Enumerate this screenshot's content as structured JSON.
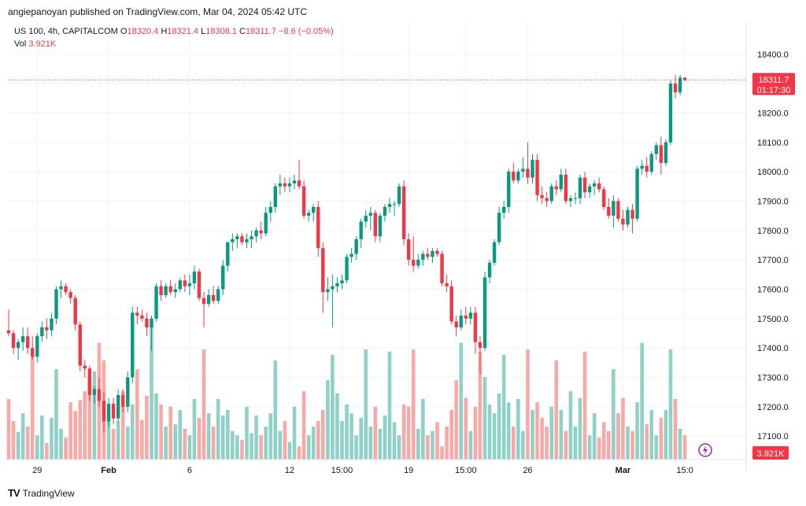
{
  "header": {
    "published": "angiepanoyan published on TradingView.com, Mar 04, 2024 05:42 UTC"
  },
  "legend": {
    "symbol": "US 100, 4h, CAPITALCOM",
    "o_label": "O",
    "o_value": "18320.4",
    "h_label": "H",
    "h_value": "18321.4",
    "l_label": "L",
    "l_value": "18308.1",
    "c_label": "C",
    "c_value": "18311.7",
    "change": "−8.6 (−0.05%)",
    "vol_label": "Vol",
    "vol_value": "3.921K"
  },
  "price_tag": {
    "price": "18311.7",
    "countdown": "01:17:30"
  },
  "vol_tag": "3.921K",
  "footer": {
    "logo": "TV",
    "brand": "TradingView"
  },
  "colors": {
    "up": "#089981",
    "down": "#f23645",
    "vol_up": "#8fd1c6",
    "vol_down": "#f7a9a7",
    "grid": "#f0f3fa"
  },
  "chart_data": {
    "type": "candlestick",
    "title": "US 100, 4h, CAPITALCOM",
    "y_ticks": [
      17100,
      17200,
      17300,
      17400,
      17500,
      17600,
      17700,
      17800,
      17900,
      18000,
      18100,
      18200,
      18400
    ],
    "ylim": [
      17020,
      18450
    ],
    "x_ticks": [
      {
        "label": "29",
        "index": 6
      },
      {
        "label": "Feb",
        "index": 21
      },
      {
        "label": "6",
        "index": 38
      },
      {
        "label": "12",
        "index": 59
      },
      {
        "label": "15:00",
        "index": 70
      },
      {
        "label": "19",
        "index": 84
      },
      {
        "label": "15:00",
        "index": 96
      },
      {
        "label": "26",
        "index": 109
      },
      {
        "label": "Mar",
        "index": 129
      },
      {
        "label": "15:0",
        "index": 142
      }
    ],
    "last_price": 18311.7,
    "candles": [
      {
        "o": 17460,
        "h": 17530,
        "l": 17440,
        "c": 17450,
        "v": 0.55
      },
      {
        "o": 17450,
        "h": 17460,
        "l": 17380,
        "c": 17400,
        "v": 0.35
      },
      {
        "o": 17400,
        "h": 17430,
        "l": 17360,
        "c": 17420,
        "v": 0.25
      },
      {
        "o": 17420,
        "h": 17470,
        "l": 17390,
        "c": 17440,
        "v": 0.42
      },
      {
        "o": 17440,
        "h": 17470,
        "l": 17380,
        "c": 17400,
        "v": 0.3
      },
      {
        "o": 17400,
        "h": 17440,
        "l": 17360,
        "c": 17370,
        "v": 0.98
      },
      {
        "o": 17370,
        "h": 17450,
        "l": 17350,
        "c": 17440,
        "v": 0.22
      },
      {
        "o": 17440,
        "h": 17490,
        "l": 17420,
        "c": 17470,
        "v": 0.4
      },
      {
        "o": 17470,
        "h": 17500,
        "l": 17430,
        "c": 17460,
        "v": 0.15
      },
      {
        "o": 17460,
        "h": 17520,
        "l": 17440,
        "c": 17500,
        "v": 0.38
      },
      {
        "o": 17500,
        "h": 17610,
        "l": 17480,
        "c": 17600,
        "v": 0.82
      },
      {
        "o": 17600,
        "h": 17630,
        "l": 17570,
        "c": 17610,
        "v": 0.28
      },
      {
        "o": 17610,
        "h": 17620,
        "l": 17580,
        "c": 17590,
        "v": 0.2
      },
      {
        "o": 17590,
        "h": 17600,
        "l": 17550,
        "c": 17570,
        "v": 0.52
      },
      {
        "o": 17570,
        "h": 17580,
        "l": 17460,
        "c": 17480,
        "v": 0.44
      },
      {
        "o": 17480,
        "h": 17490,
        "l": 17320,
        "c": 17340,
        "v": 0.54
      },
      {
        "o": 17340,
        "h": 17360,
        "l": 17300,
        "c": 17330,
        "v": 0.62
      },
      {
        "o": 17330,
        "h": 17340,
        "l": 17220,
        "c": 17240,
        "v": 0.75
      },
      {
        "o": 17240,
        "h": 17270,
        "l": 17210,
        "c": 17260,
        "v": 0.8
      },
      {
        "o": 17260,
        "h": 17300,
        "l": 17200,
        "c": 17220,
        "v": 1.06
      },
      {
        "o": 17220,
        "h": 17250,
        "l": 17110,
        "c": 17150,
        "v": 0.9
      },
      {
        "o": 17150,
        "h": 17230,
        "l": 17130,
        "c": 17210,
        "v": 0.42
      },
      {
        "o": 17210,
        "h": 17230,
        "l": 17140,
        "c": 17160,
        "v": 0.28
      },
      {
        "o": 17160,
        "h": 17260,
        "l": 17150,
        "c": 17240,
        "v": 0.35
      },
      {
        "o": 17240,
        "h": 17260,
        "l": 17180,
        "c": 17200,
        "v": 0.62
      },
      {
        "o": 17200,
        "h": 17320,
        "l": 17180,
        "c": 17300,
        "v": 0.3
      },
      {
        "o": 17300,
        "h": 17540,
        "l": 17280,
        "c": 17520,
        "v": 0.5
      },
      {
        "o": 17520,
        "h": 17540,
        "l": 17480,
        "c": 17510,
        "v": 0.82
      },
      {
        "o": 17510,
        "h": 17530,
        "l": 17490,
        "c": 17500,
        "v": 0.36
      },
      {
        "o": 17500,
        "h": 17520,
        "l": 17440,
        "c": 17470,
        "v": 0.58
      },
      {
        "o": 17470,
        "h": 17510,
        "l": 17390,
        "c": 17500,
        "v": 1.26
      },
      {
        "o": 17500,
        "h": 17620,
        "l": 17490,
        "c": 17610,
        "v": 0.6
      },
      {
        "o": 17610,
        "h": 17630,
        "l": 17560,
        "c": 17580,
        "v": 0.5
      },
      {
        "o": 17580,
        "h": 17620,
        "l": 17570,
        "c": 17610,
        "v": 0.3
      },
      {
        "o": 17610,
        "h": 17630,
        "l": 17580,
        "c": 17590,
        "v": 0.48
      },
      {
        "o": 17590,
        "h": 17620,
        "l": 17570,
        "c": 17600,
        "v": 0.32
      },
      {
        "o": 17600,
        "h": 17640,
        "l": 17590,
        "c": 17630,
        "v": 0.45
      },
      {
        "o": 17630,
        "h": 17650,
        "l": 17590,
        "c": 17610,
        "v": 0.28
      },
      {
        "o": 17610,
        "h": 17650,
        "l": 17580,
        "c": 17620,
        "v": 0.22
      },
      {
        "o": 17620,
        "h": 17680,
        "l": 17600,
        "c": 17660,
        "v": 0.55
      },
      {
        "o": 17660,
        "h": 17670,
        "l": 17560,
        "c": 17570,
        "v": 0.38
      },
      {
        "o": 17570,
        "h": 17590,
        "l": 17470,
        "c": 17550,
        "v": 1.0
      },
      {
        "o": 17550,
        "h": 17600,
        "l": 17540,
        "c": 17580,
        "v": 0.42
      },
      {
        "o": 17580,
        "h": 17610,
        "l": 17550,
        "c": 17560,
        "v": 0.3
      },
      {
        "o": 17560,
        "h": 17610,
        "l": 17550,
        "c": 17600,
        "v": 0.55
      },
      {
        "o": 17600,
        "h": 17700,
        "l": 17580,
        "c": 17680,
        "v": 0.4
      },
      {
        "o": 17680,
        "h": 17760,
        "l": 17660,
        "c": 17760,
        "v": 0.45
      },
      {
        "o": 17760,
        "h": 17790,
        "l": 17730,
        "c": 17770,
        "v": 0.26
      },
      {
        "o": 17770,
        "h": 17790,
        "l": 17740,
        "c": 17780,
        "v": 0.22
      },
      {
        "o": 17780,
        "h": 17790,
        "l": 17750,
        "c": 17760,
        "v": 0.18
      },
      {
        "o": 17760,
        "h": 17790,
        "l": 17740,
        "c": 17770,
        "v": 0.48
      },
      {
        "o": 17770,
        "h": 17800,
        "l": 17740,
        "c": 17780,
        "v": 0.24
      },
      {
        "o": 17780,
        "h": 17810,
        "l": 17760,
        "c": 17800,
        "v": 0.4
      },
      {
        "o": 17800,
        "h": 17830,
        "l": 17770,
        "c": 17790,
        "v": 0.22
      },
      {
        "o": 17790,
        "h": 17880,
        "l": 17780,
        "c": 17860,
        "v": 0.3
      },
      {
        "o": 17860,
        "h": 17900,
        "l": 17830,
        "c": 17880,
        "v": 0.42
      },
      {
        "o": 17880,
        "h": 17960,
        "l": 17860,
        "c": 17950,
        "v": 0.9
      },
      {
        "o": 17950,
        "h": 17990,
        "l": 17920,
        "c": 17960,
        "v": 0.26
      },
      {
        "o": 17960,
        "h": 17980,
        "l": 17930,
        "c": 17950,
        "v": 0.35
      },
      {
        "o": 17950,
        "h": 17980,
        "l": 17930,
        "c": 17960,
        "v": 0.16
      },
      {
        "o": 17960,
        "h": 17990,
        "l": 17940,
        "c": 17970,
        "v": 0.48
      },
      {
        "o": 17970,
        "h": 18040,
        "l": 17940,
        "c": 17950,
        "v": 0.12
      },
      {
        "o": 17950,
        "h": 17970,
        "l": 17840,
        "c": 17850,
        "v": 0.62
      },
      {
        "o": 17850,
        "h": 17870,
        "l": 17830,
        "c": 17860,
        "v": 0.22
      },
      {
        "o": 17860,
        "h": 17890,
        "l": 17830,
        "c": 17880,
        "v": 0.3
      },
      {
        "o": 17880,
        "h": 17900,
        "l": 17710,
        "c": 17740,
        "v": 0.35
      },
      {
        "o": 17740,
        "h": 17760,
        "l": 17520,
        "c": 17590,
        "v": 0.45
      },
      {
        "o": 17590,
        "h": 17640,
        "l": 17560,
        "c": 17600,
        "v": 0.72
      },
      {
        "o": 17600,
        "h": 17650,
        "l": 17470,
        "c": 17610,
        "v": 0.95
      },
      {
        "o": 17610,
        "h": 17640,
        "l": 17590,
        "c": 17620,
        "v": 0.6
      },
      {
        "o": 17620,
        "h": 17650,
        "l": 17600,
        "c": 17630,
        "v": 0.35
      },
      {
        "o": 17630,
        "h": 17720,
        "l": 17620,
        "c": 17710,
        "v": 0.5
      },
      {
        "o": 17710,
        "h": 17740,
        "l": 17690,
        "c": 17720,
        "v": 0.42
      },
      {
        "o": 17720,
        "h": 17780,
        "l": 17700,
        "c": 17770,
        "v": 0.22
      },
      {
        "o": 17770,
        "h": 17840,
        "l": 17740,
        "c": 17830,
        "v": 0.38
      },
      {
        "o": 17830,
        "h": 17870,
        "l": 17810,
        "c": 17850,
        "v": 1.0
      },
      {
        "o": 17850,
        "h": 17880,
        "l": 17800,
        "c": 17860,
        "v": 0.3
      },
      {
        "o": 17860,
        "h": 17870,
        "l": 17760,
        "c": 17780,
        "v": 0.48
      },
      {
        "o": 17780,
        "h": 17860,
        "l": 17760,
        "c": 17850,
        "v": 0.28
      },
      {
        "o": 17850,
        "h": 17890,
        "l": 17830,
        "c": 17880,
        "v": 0.4
      },
      {
        "o": 17880,
        "h": 17910,
        "l": 17860,
        "c": 17890,
        "v": 0.98
      },
      {
        "o": 17890,
        "h": 17900,
        "l": 17850,
        "c": 17890,
        "v": 0.34
      },
      {
        "o": 17890,
        "h": 17960,
        "l": 17880,
        "c": 17950,
        "v": 0.22
      },
      {
        "o": 17950,
        "h": 17970,
        "l": 17750,
        "c": 17770,
        "v": 0.5
      },
      {
        "o": 17770,
        "h": 17790,
        "l": 17680,
        "c": 17700,
        "v": 0.48
      },
      {
        "o": 17700,
        "h": 17780,
        "l": 17660,
        "c": 17680,
        "v": 1.0
      },
      {
        "o": 17680,
        "h": 17720,
        "l": 17670,
        "c": 17700,
        "v": 0.28
      },
      {
        "o": 17700,
        "h": 17730,
        "l": 17680,
        "c": 17720,
        "v": 0.55
      },
      {
        "o": 17720,
        "h": 17740,
        "l": 17700,
        "c": 17710,
        "v": 0.22
      },
      {
        "o": 17710,
        "h": 17740,
        "l": 17690,
        "c": 17730,
        "v": 0.26
      },
      {
        "o": 17730,
        "h": 17740,
        "l": 17710,
        "c": 17720,
        "v": 0.34
      },
      {
        "o": 17720,
        "h": 17730,
        "l": 17610,
        "c": 17620,
        "v": 0.12
      },
      {
        "o": 17620,
        "h": 17650,
        "l": 17590,
        "c": 17610,
        "v": 0.3
      },
      {
        "o": 17610,
        "h": 17630,
        "l": 17480,
        "c": 17490,
        "v": 0.45
      },
      {
        "o": 17490,
        "h": 17510,
        "l": 17440,
        "c": 17470,
        "v": 0.72
      },
      {
        "o": 17470,
        "h": 17530,
        "l": 17460,
        "c": 17510,
        "v": 1.06
      },
      {
        "o": 17510,
        "h": 17540,
        "l": 17480,
        "c": 17500,
        "v": 0.56
      },
      {
        "o": 17500,
        "h": 17540,
        "l": 17480,
        "c": 17520,
        "v": 0.26
      },
      {
        "o": 17520,
        "h": 17540,
        "l": 17380,
        "c": 17420,
        "v": 0.48
      },
      {
        "o": 17420,
        "h": 17440,
        "l": 17310,
        "c": 17400,
        "v": 0.98
      },
      {
        "o": 17400,
        "h": 17660,
        "l": 17390,
        "c": 17640,
        "v": 0.75
      },
      {
        "o": 17640,
        "h": 17700,
        "l": 17620,
        "c": 17690,
        "v": 0.5
      },
      {
        "o": 17690,
        "h": 17770,
        "l": 17680,
        "c": 17760,
        "v": 0.42
      },
      {
        "o": 17760,
        "h": 17880,
        "l": 17750,
        "c": 17860,
        "v": 0.6
      },
      {
        "o": 17860,
        "h": 17900,
        "l": 17840,
        "c": 17880,
        "v": 0.95
      },
      {
        "o": 17880,
        "h": 18010,
        "l": 17860,
        "c": 18000,
        "v": 0.52
      },
      {
        "o": 18000,
        "h": 18030,
        "l": 17960,
        "c": 17970,
        "v": 0.3
      },
      {
        "o": 17970,
        "h": 18010,
        "l": 17960,
        "c": 18000,
        "v": 0.55
      },
      {
        "o": 18000,
        "h": 18050,
        "l": 17980,
        "c": 18010,
        "v": 0.26
      },
      {
        "o": 18010,
        "h": 18100,
        "l": 17960,
        "c": 17980,
        "v": 1.0
      },
      {
        "o": 17980,
        "h": 18060,
        "l": 17960,
        "c": 18040,
        "v": 0.45
      },
      {
        "o": 18040,
        "h": 18060,
        "l": 17900,
        "c": 17920,
        "v": 0.52
      },
      {
        "o": 17920,
        "h": 17950,
        "l": 17890,
        "c": 17910,
        "v": 0.38
      },
      {
        "o": 17910,
        "h": 17930,
        "l": 17880,
        "c": 17900,
        "v": 0.3
      },
      {
        "o": 17900,
        "h": 17960,
        "l": 17890,
        "c": 17950,
        "v": 0.48
      },
      {
        "o": 17950,
        "h": 17970,
        "l": 17920,
        "c": 17940,
        "v": 0.9
      },
      {
        "o": 17940,
        "h": 18010,
        "l": 17930,
        "c": 17990,
        "v": 0.45
      },
      {
        "o": 17990,
        "h": 18010,
        "l": 17890,
        "c": 17900,
        "v": 0.26
      },
      {
        "o": 17900,
        "h": 17920,
        "l": 17880,
        "c": 17910,
        "v": 0.62
      },
      {
        "o": 17910,
        "h": 17930,
        "l": 17890,
        "c": 17910,
        "v": 0.3
      },
      {
        "o": 17910,
        "h": 17990,
        "l": 17890,
        "c": 17980,
        "v": 0.56
      },
      {
        "o": 17980,
        "h": 18000,
        "l": 17910,
        "c": 17930,
        "v": 0.98
      },
      {
        "o": 17930,
        "h": 17960,
        "l": 17910,
        "c": 17950,
        "v": 0.22
      },
      {
        "o": 17950,
        "h": 17970,
        "l": 17920,
        "c": 17960,
        "v": 0.42
      },
      {
        "o": 17960,
        "h": 17980,
        "l": 17930,
        "c": 17940,
        "v": 0.2
      },
      {
        "o": 17940,
        "h": 17950,
        "l": 17870,
        "c": 17880,
        "v": 0.34
      },
      {
        "o": 17880,
        "h": 17910,
        "l": 17840,
        "c": 17850,
        "v": 0.26
      },
      {
        "o": 17850,
        "h": 17920,
        "l": 17810,
        "c": 17900,
        "v": 0.82
      },
      {
        "o": 17900,
        "h": 17910,
        "l": 17830,
        "c": 17840,
        "v": 0.42
      },
      {
        "o": 17840,
        "h": 17870,
        "l": 17800,
        "c": 17820,
        "v": 0.56
      },
      {
        "o": 17820,
        "h": 17880,
        "l": 17810,
        "c": 17870,
        "v": 0.3
      },
      {
        "o": 17870,
        "h": 17890,
        "l": 17790,
        "c": 17840,
        "v": 0.26
      },
      {
        "o": 17840,
        "h": 18020,
        "l": 17830,
        "c": 18010,
        "v": 0.52
      },
      {
        "o": 18010,
        "h": 18040,
        "l": 17990,
        "c": 18020,
        "v": 1.06
      },
      {
        "o": 18020,
        "h": 18050,
        "l": 17980,
        "c": 18000,
        "v": 0.32
      },
      {
        "o": 18000,
        "h": 18070,
        "l": 17990,
        "c": 18060,
        "v": 0.45
      },
      {
        "o": 18060,
        "h": 18100,
        "l": 18040,
        "c": 18090,
        "v": 0.22
      },
      {
        "o": 18090,
        "h": 18120,
        "l": 17990,
        "c": 18030,
        "v": 0.38
      },
      {
        "o": 18030,
        "h": 18110,
        "l": 18020,
        "c": 18100,
        "v": 0.45
      },
      {
        "o": 18100,
        "h": 18310,
        "l": 18090,
        "c": 18300,
        "v": 1.0
      },
      {
        "o": 18300,
        "h": 18330,
        "l": 18250,
        "c": 18270,
        "v": 0.55
      },
      {
        "o": 18270,
        "h": 18330,
        "l": 18260,
        "c": 18320,
        "v": 0.28
      },
      {
        "o": 18320.4,
        "h": 18321.4,
        "l": 18308.1,
        "c": 18311.7,
        "v": 0.22
      }
    ]
  }
}
